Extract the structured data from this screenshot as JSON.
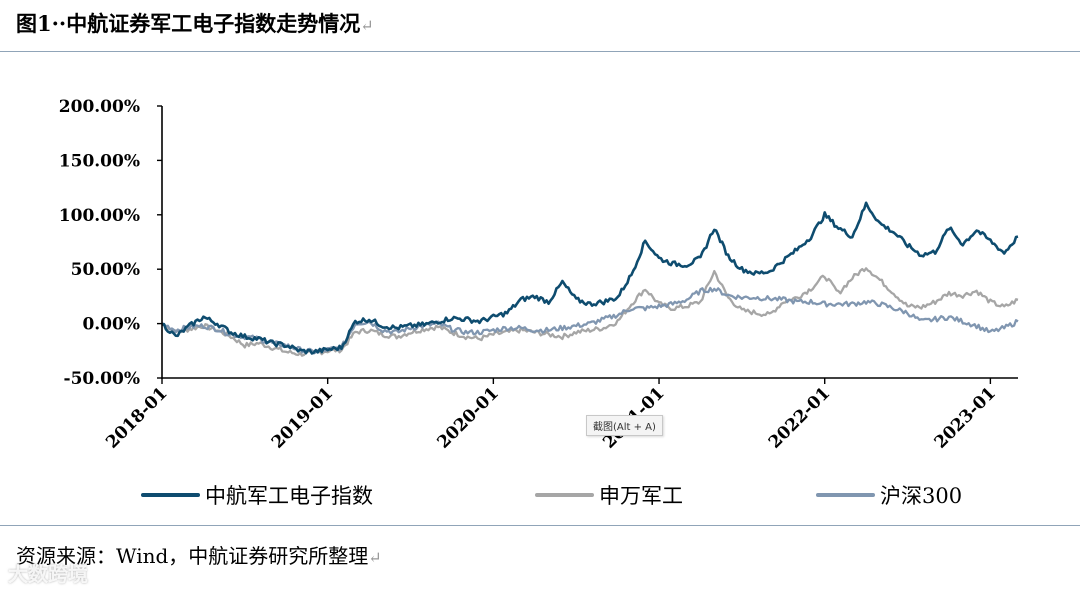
{
  "figure": {
    "title": "图1··中航证券军工电子指数走势情况",
    "return_mark": "↵",
    "source": "资源来源：Wind，中航证券研究所整理",
    "watermark": "大数跨境",
    "tooltip": "截图(Alt + A)"
  },
  "chart_data": {
    "type": "line",
    "title": "",
    "xlabel": "",
    "ylabel": "",
    "ylim": [
      -50,
      200
    ],
    "y_ticks": [
      -50,
      0,
      50,
      100,
      150,
      200
    ],
    "y_tick_labels": [
      "-50.00%",
      "0.00%",
      "50.00%",
      "100.00%",
      "150.00%",
      "200.00%"
    ],
    "x_ticks": [
      0,
      12,
      24,
      36,
      48,
      60
    ],
    "x_tick_labels": [
      "2018-01",
      "2019-01",
      "2020-01",
      "2021-01",
      "2022-01",
      "2023-01"
    ],
    "xlim": [
      0,
      62
    ],
    "legend_position": "bottom",
    "x": [
      0,
      1,
      2,
      3,
      4,
      5,
      6,
      7,
      8,
      9,
      10,
      11,
      12,
      13,
      14,
      15,
      16,
      17,
      18,
      19,
      20,
      21,
      22,
      23,
      24,
      25,
      26,
      27,
      28,
      29,
      30,
      31,
      32,
      33,
      34,
      35,
      36,
      37,
      38,
      39,
      40,
      41,
      42,
      43,
      44,
      45,
      46,
      47,
      48,
      49,
      50,
      51,
      52,
      53,
      54,
      55,
      56,
      57,
      58,
      59,
      60,
      61,
      62
    ],
    "series": [
      {
        "name": "中航军工电子指数",
        "color": "#0e4c6f",
        "values": [
          0,
          -12,
          -2,
          6,
          0,
          -8,
          -12,
          -14,
          -18,
          -20,
          -25,
          -26,
          -24,
          -22,
          2,
          4,
          -2,
          -4,
          -2,
          -1,
          2,
          5,
          4,
          2,
          6,
          10,
          22,
          25,
          20,
          38,
          22,
          18,
          20,
          24,
          45,
          76,
          60,
          55,
          54,
          60,
          88,
          62,
          50,
          46,
          48,
          58,
          68,
          80,
          100,
          88,
          80,
          110,
          92,
          84,
          72,
          63,
          66,
          88,
          73,
          86,
          76,
          65,
          80
        ]
      },
      {
        "name": "申万军工",
        "color": "#a6a6a6",
        "values": [
          0,
          -8,
          -5,
          -2,
          -6,
          -12,
          -20,
          -18,
          -22,
          -26,
          -28,
          -27,
          -25,
          -24,
          -8,
          -6,
          -10,
          -12,
          -8,
          -5,
          -3,
          -8,
          -12,
          -14,
          -10,
          -8,
          -6,
          -8,
          -10,
          -12,
          -8,
          -6,
          -4,
          2,
          18,
          32,
          18,
          14,
          16,
          20,
          48,
          24,
          12,
          10,
          8,
          20,
          24,
          32,
          44,
          28,
          42,
          52,
          40,
          28,
          16,
          15,
          20,
          28,
          26,
          30,
          20,
          15,
          22
        ]
      },
      {
        "name": "沪深300",
        "color": "#8096b0",
        "values": [
          0,
          -6,
          -3,
          -2,
          -5,
          -10,
          -12,
          -14,
          -18,
          -20,
          -24,
          -26,
          -24,
          -22,
          0,
          2,
          -6,
          -8,
          -4,
          -2,
          0,
          -5,
          -8,
          -8,
          -6,
          -4,
          -4,
          -6,
          -6,
          -4,
          -2,
          0,
          4,
          8,
          14,
          14,
          16,
          18,
          22,
          30,
          32,
          26,
          24,
          24,
          23,
          22,
          20,
          20,
          18,
          18,
          18,
          20,
          18,
          14,
          10,
          2,
          4,
          6,
          2,
          -2,
          -8,
          -4,
          2
        ]
      }
    ]
  }
}
